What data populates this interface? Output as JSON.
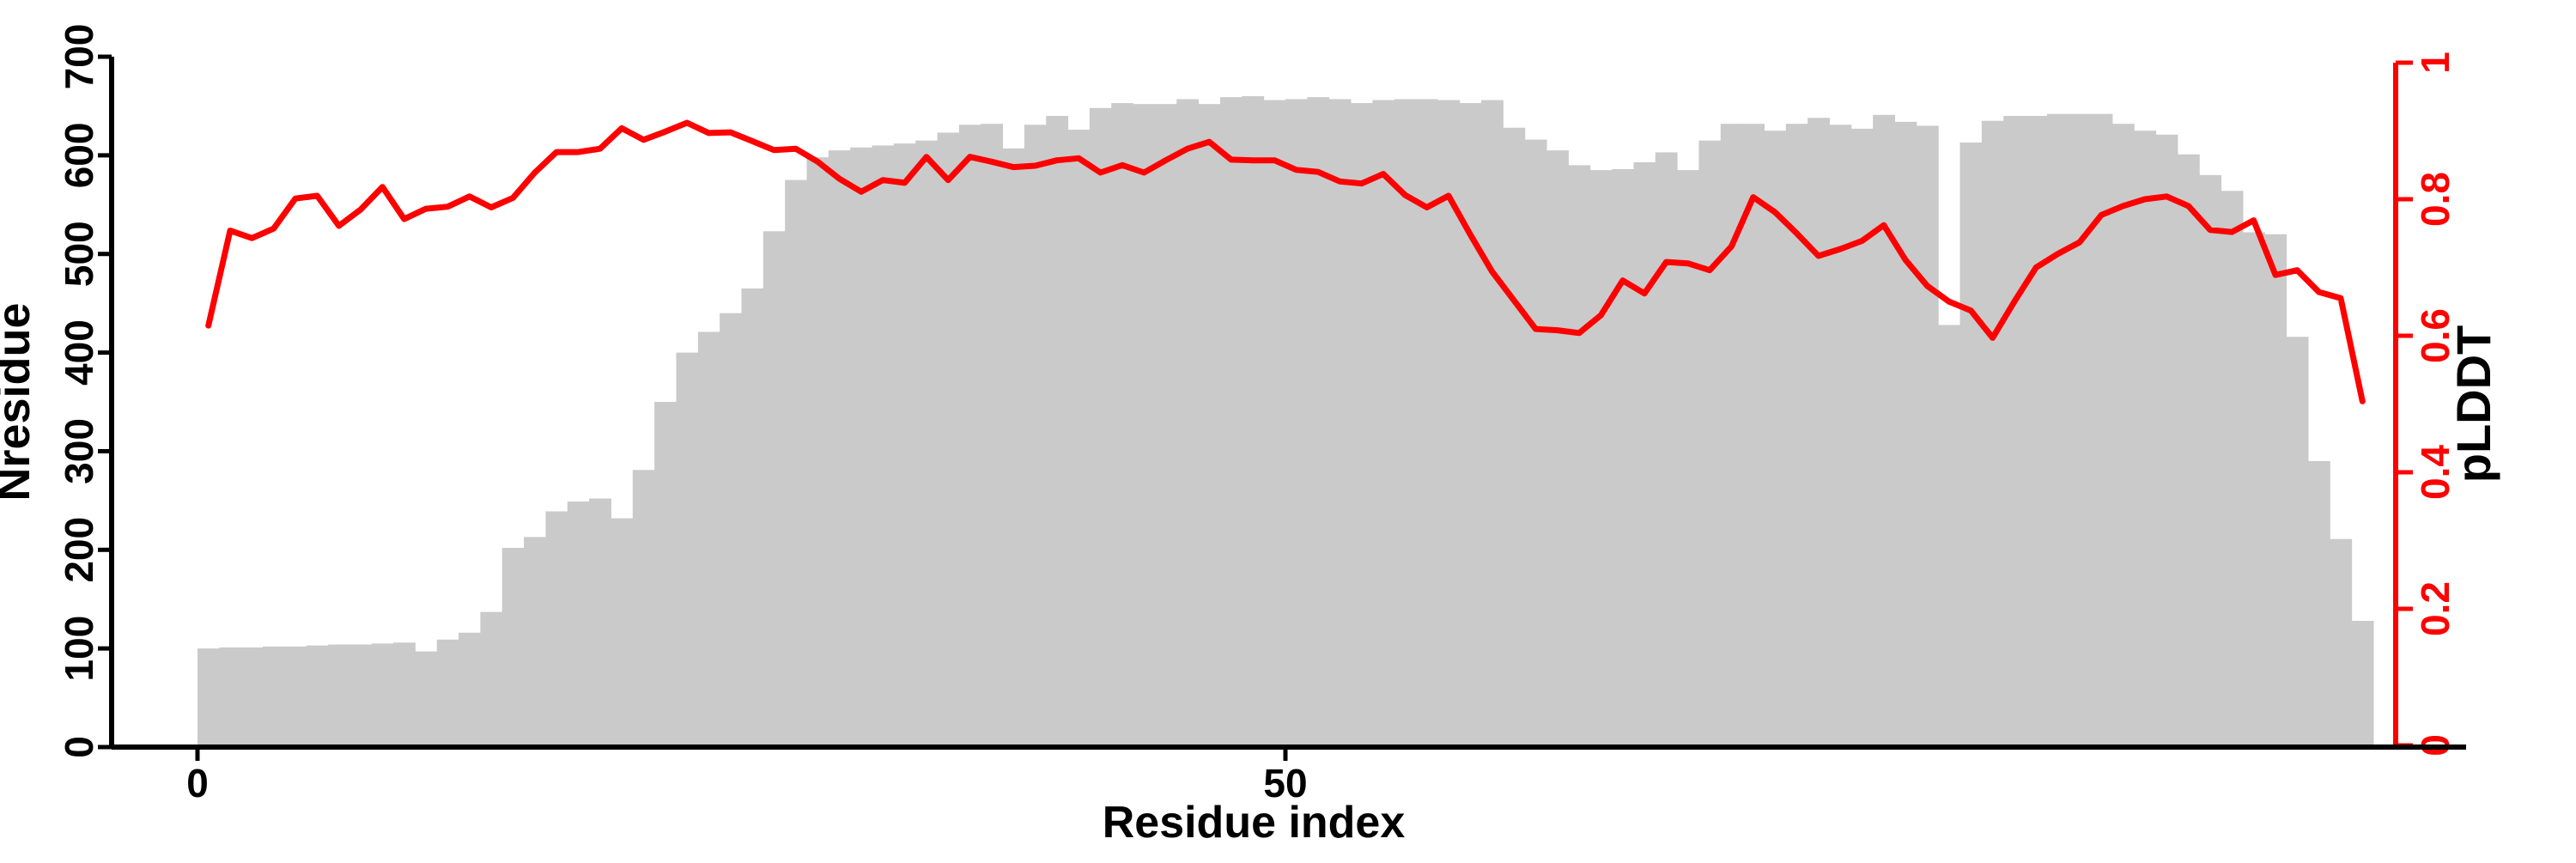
{
  "page": {
    "background": "#ffffff",
    "kind": "R-style combo plot: Nresidue histogram with pLDDT line overlay"
  },
  "chart_data": {
    "type": [
      "bar",
      "line"
    ],
    "title": "",
    "xlabel": "Residue index",
    "ylabel_left": "Nresidue",
    "ylabel_right": "pLDDT",
    "x_tick_labels": [
      "0",
      "50"
    ],
    "x_tick_values": [
      0,
      50
    ],
    "xlim": [
      0,
      100
    ],
    "ylim_left": [
      0,
      700
    ],
    "y_ticks_left": [
      0,
      100,
      200,
      300,
      400,
      500,
      600,
      700
    ],
    "ylim_right": [
      0,
      1
    ],
    "y_ticks_right": [
      0,
      0.2,
      0.4,
      0.6,
      0.8,
      1
    ],
    "grid": "off",
    "legend": "none",
    "colors": {
      "bar_fill": "#cacaca",
      "line": "#ff0000",
      "left_axis": "#000000",
      "right_axis": "#ff0000"
    },
    "x": [
      0,
      1,
      2,
      3,
      4,
      5,
      6,
      7,
      8,
      9,
      10,
      11,
      12,
      13,
      14,
      15,
      16,
      17,
      18,
      19,
      20,
      21,
      22,
      23,
      24,
      25,
      26,
      27,
      28,
      29,
      30,
      31,
      32,
      33,
      34,
      35,
      36,
      37,
      38,
      39,
      40,
      41,
      42,
      43,
      44,
      45,
      46,
      47,
      48,
      49,
      50,
      51,
      52,
      53,
      54,
      55,
      56,
      57,
      58,
      59,
      60,
      61,
      62,
      63,
      64,
      65,
      66,
      67,
      68,
      69,
      70,
      71,
      72,
      73,
      74,
      75,
      76,
      77,
      78,
      79,
      80,
      81,
      82,
      83,
      84,
      85,
      86,
      87,
      88,
      89,
      90,
      91,
      92,
      93,
      94,
      95,
      96,
      97,
      98,
      99
    ],
    "series": [
      {
        "name": "Nresidue",
        "type": "bar",
        "axis": "left",
        "values": [
          100,
          101,
          101,
          102,
          102,
          103,
          104,
          104,
          105,
          106,
          97,
          109,
          116,
          137,
          202,
          213,
          239,
          249,
          252,
          232,
          281,
          350,
          400,
          421,
          440,
          465,
          523,
          575,
          598,
          605,
          608,
          610,
          612,
          615,
          623,
          631,
          632,
          607,
          631,
          640,
          626,
          648,
          653,
          652,
          652,
          657,
          652,
          659,
          660,
          656,
          657,
          659,
          657,
          653,
          656,
          657,
          657,
          656,
          653,
          656,
          628,
          616,
          605,
          590,
          585,
          586,
          593,
          603,
          585,
          615,
          632,
          632,
          625,
          632,
          638,
          631,
          627,
          641,
          634,
          630,
          428,
          613,
          635,
          640,
          640,
          642,
          642,
          642,
          632,
          625,
          621,
          601,
          580,
          564,
          522,
          520,
          416,
          290,
          211,
          128
        ]
      },
      {
        "name": "pLDDT",
        "type": "line",
        "axis": "right",
        "values": [
          0.615,
          0.754,
          0.743,
          0.757,
          0.801,
          0.805,
          0.761,
          0.785,
          0.818,
          0.771,
          0.786,
          0.789,
          0.804,
          0.788,
          0.802,
          0.839,
          0.869,
          0.869,
          0.874,
          0.904,
          0.887,
          0.899,
          0.912,
          0.897,
          0.898,
          0.885,
          0.872,
          0.874,
          0.855,
          0.83,
          0.811,
          0.828,
          0.824,
          0.862,
          0.828,
          0.862,
          0.855,
          0.847,
          0.849,
          0.857,
          0.86,
          0.839,
          0.85,
          0.839,
          0.857,
          0.874,
          0.884,
          0.858,
          0.857,
          0.857,
          0.843,
          0.84,
          0.826,
          0.823,
          0.837,
          0.806,
          0.788,
          0.805,
          0.748,
          0.694,
          0.652,
          0.61,
          0.608,
          0.604,
          0.63,
          0.681,
          0.662,
          0.708,
          0.706,
          0.696,
          0.731,
          0.803,
          0.781,
          0.75,
          0.717,
          0.727,
          0.739,
          0.762,
          0.711,
          0.673,
          0.65,
          0.637,
          0.597,
          0.65,
          0.7,
          0.72,
          0.737,
          0.777,
          0.79,
          0.8,
          0.804,
          0.79,
          0.755,
          0.752,
          0.769,
          0.689,
          0.696,
          0.664,
          0.655,
          0.504
        ]
      }
    ]
  }
}
